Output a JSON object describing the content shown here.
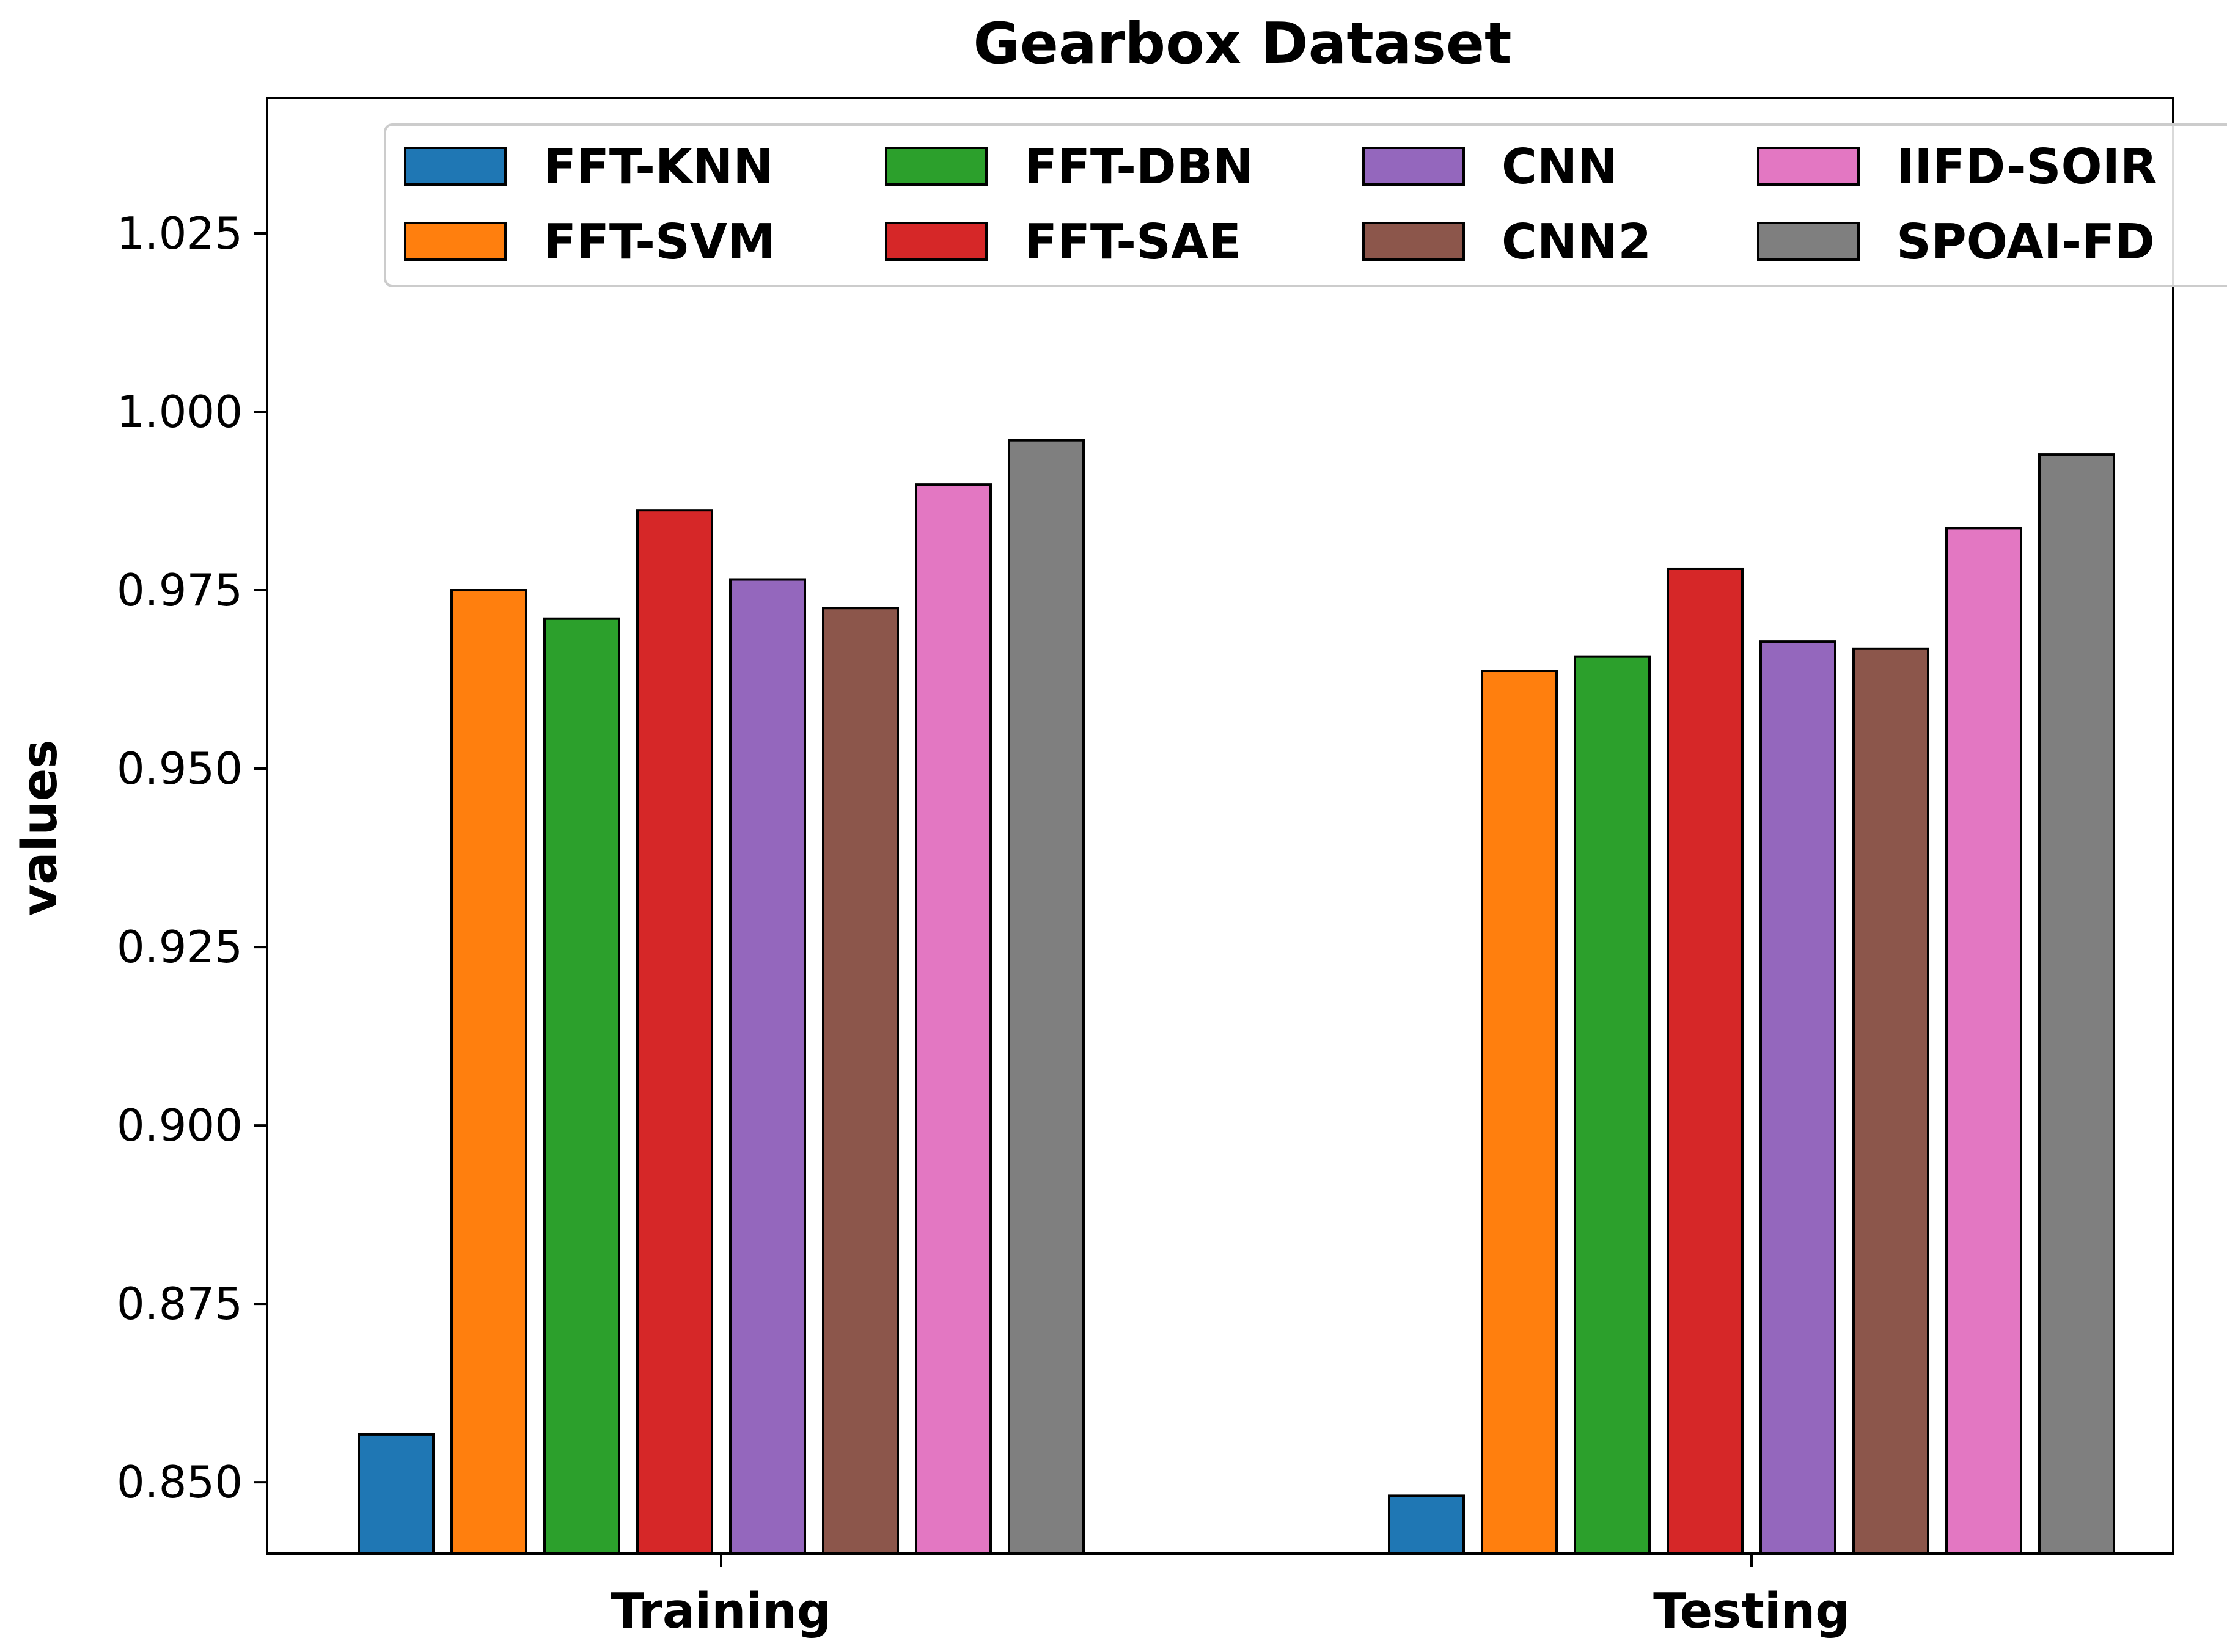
{
  "chart_data": {
    "type": "bar",
    "title": "Gearbox Dataset",
    "xlabel": "",
    "ylabel": "values",
    "categories": [
      "Training",
      "Testing"
    ],
    "ylim": [
      0.84,
      1.044
    ],
    "yticks": [
      0.85,
      0.875,
      0.9,
      0.925,
      0.95,
      0.975,
      1.0,
      1.025
    ],
    "ytick_labels": [
      "0.850",
      "0.875",
      "0.900",
      "0.925",
      "0.950",
      "0.975",
      "1.000",
      "1.025"
    ],
    "grid": false,
    "legend": {
      "position": "top",
      "columns": 4
    },
    "series": [
      {
        "name": "FFT-KNN",
        "color": "#1f77b4",
        "values": [
          0.8567,
          0.8481
        ]
      },
      {
        "name": "FFT-SVM",
        "color": "#ff7f0e",
        "values": [
          0.975,
          0.9637
        ]
      },
      {
        "name": "FFT-DBN",
        "color": "#2ca02c",
        "values": [
          0.971,
          0.9657
        ]
      },
      {
        "name": "FFT-SAE",
        "color": "#d62728",
        "values": [
          0.9862,
          0.978
        ]
      },
      {
        "name": "CNN",
        "color": "#9467bd",
        "values": [
          0.9765,
          0.9678
        ]
      },
      {
        "name": "CNN2",
        "color": "#8c564b",
        "values": [
          0.9725,
          0.9668
        ]
      },
      {
        "name": "IIFD-SOIR",
        "color": "#e377c2",
        "values": [
          0.9898,
          0.9837
        ]
      },
      {
        "name": "SPOAI-FD",
        "color": "#7f7f7f",
        "values": [
          0.996,
          0.994
        ]
      }
    ]
  }
}
